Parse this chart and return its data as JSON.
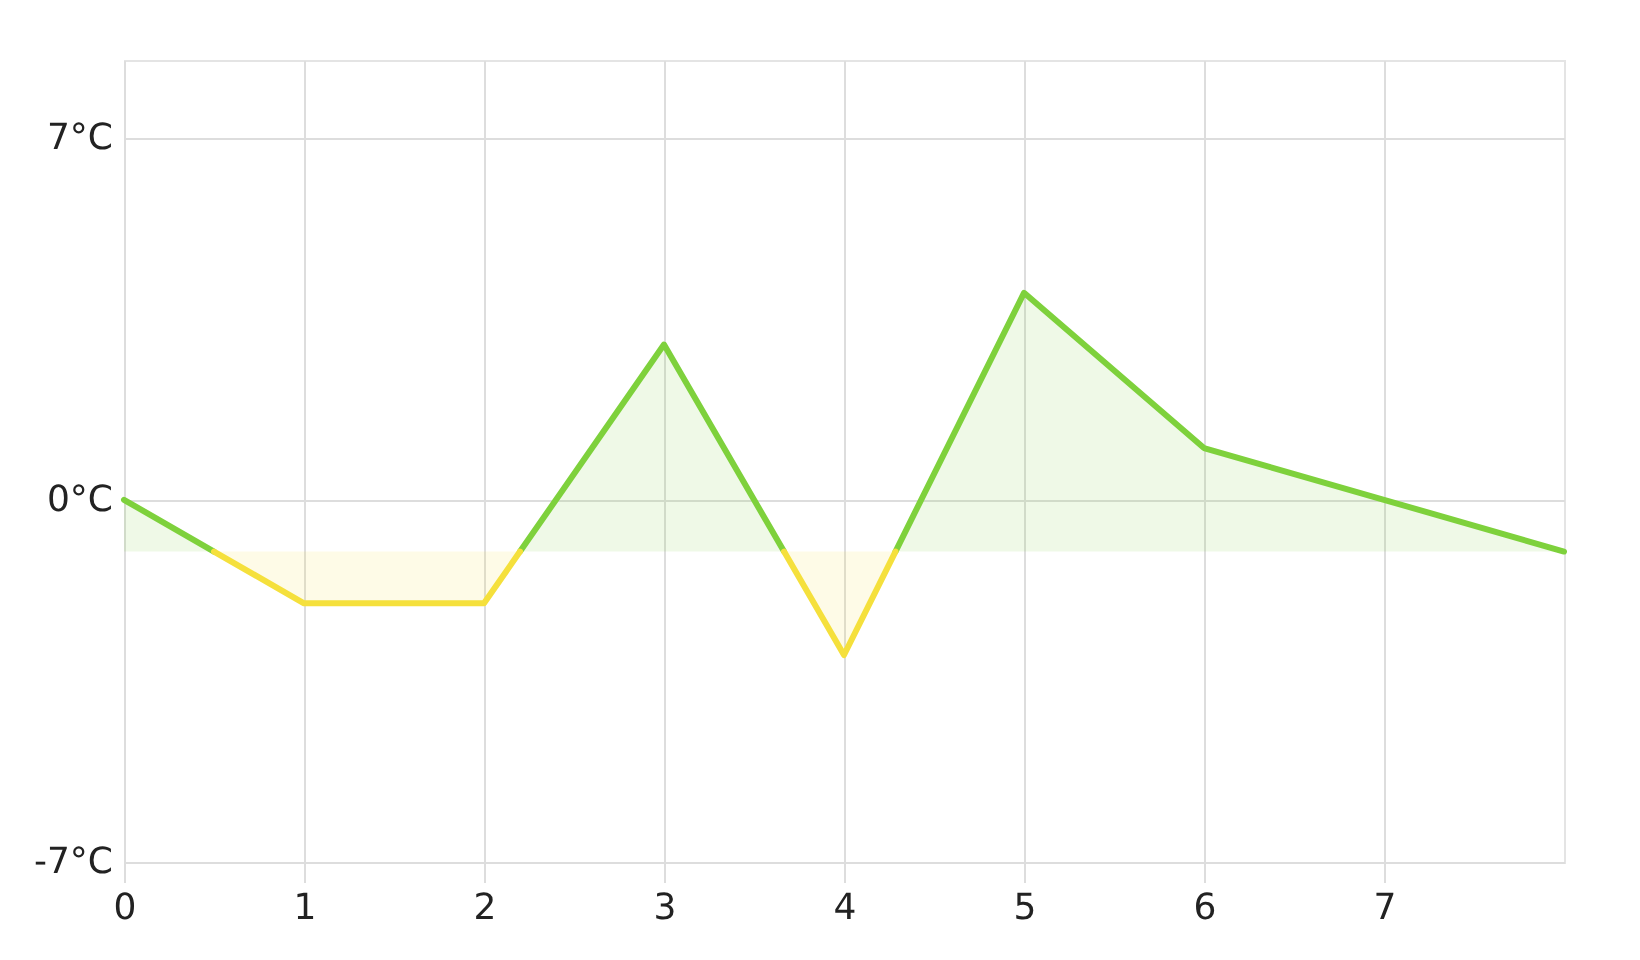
{
  "chart_data": {
    "type": "line",
    "xlim": [
      0,
      8
    ],
    "xticks": [
      0,
      1,
      2,
      3,
      4,
      5,
      6,
      7
    ],
    "ylim": [
      -7,
      8.5
    ],
    "yticks": [
      {
        "value": 7,
        "label": "7°C"
      },
      {
        "value": 0,
        "label": "0°C"
      },
      {
        "value": -7,
        "label": "-7°C"
      }
    ],
    "grid": true,
    "series": [
      {
        "color": "#7ed13c",
        "x": [
          0,
          0.5,
          1,
          2.2,
          3,
          3.667,
          4,
          4.286,
          5,
          6,
          7,
          8
        ],
        "values": [
          0,
          -1,
          null,
          -1,
          3,
          -1,
          null,
          -1,
          4,
          1,
          0,
          -1
        ],
        "lower": [
          -1,
          -1,
          null,
          -1,
          -1,
          -1,
          null,
          -1,
          -1,
          -1,
          -1,
          -1
        ],
        "upper": [
          0,
          -1,
          null,
          -1,
          3,
          -1,
          null,
          -1,
          4,
          1,
          0,
          -1
        ]
      },
      {
        "color": "#f5e03c",
        "x": [
          0.5,
          1,
          2,
          2.2,
          3,
          3.667,
          4,
          4.286
        ],
        "values": [
          -1,
          -2,
          -2,
          -1,
          null,
          -1,
          -3,
          -1
        ],
        "lower": [
          -1,
          -2,
          -2,
          -1,
          null,
          -1,
          -3,
          -1
        ],
        "upper": [
          -1,
          -1,
          -1,
          -1,
          null,
          -1,
          -1,
          -1
        ]
      }
    ]
  }
}
